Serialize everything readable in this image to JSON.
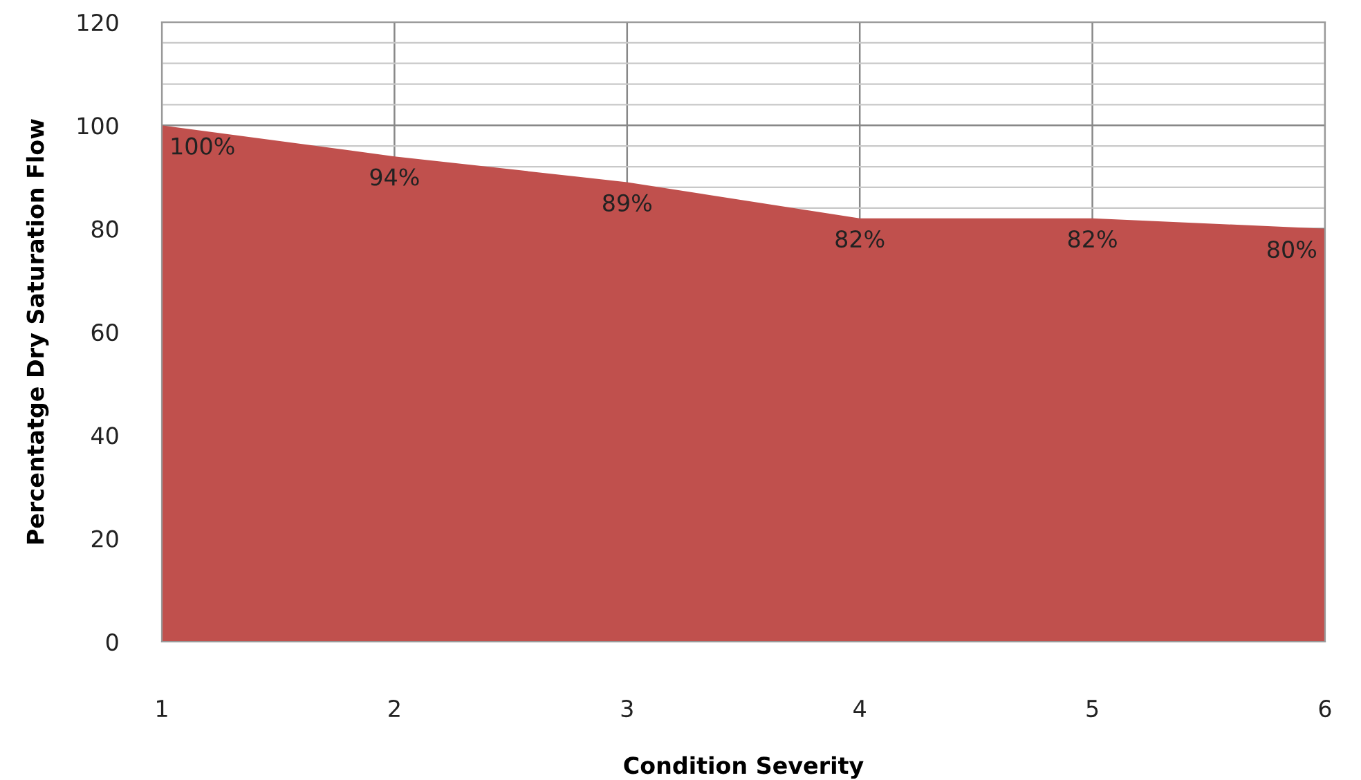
{
  "chart_data": {
    "type": "area",
    "xlabel": "Condition Severity",
    "ylabel": "Percentatge Dry Saturation Flow",
    "categories": [
      "1",
      "2",
      "3",
      "4",
      "5",
      "6"
    ],
    "series": [
      {
        "color": "#c0504d",
        "values": [
          100,
          94,
          89,
          82,
          82,
          80
        ],
        "value_labels": [
          "100%",
          "94%",
          "89%",
          "82%",
          "82%",
          "80%"
        ]
      }
    ],
    "ylim": [
      0,
      120
    ],
    "yticks": [
      0,
      20,
      40,
      60,
      80,
      100,
      120
    ],
    "grid": true,
    "legend": false
  }
}
